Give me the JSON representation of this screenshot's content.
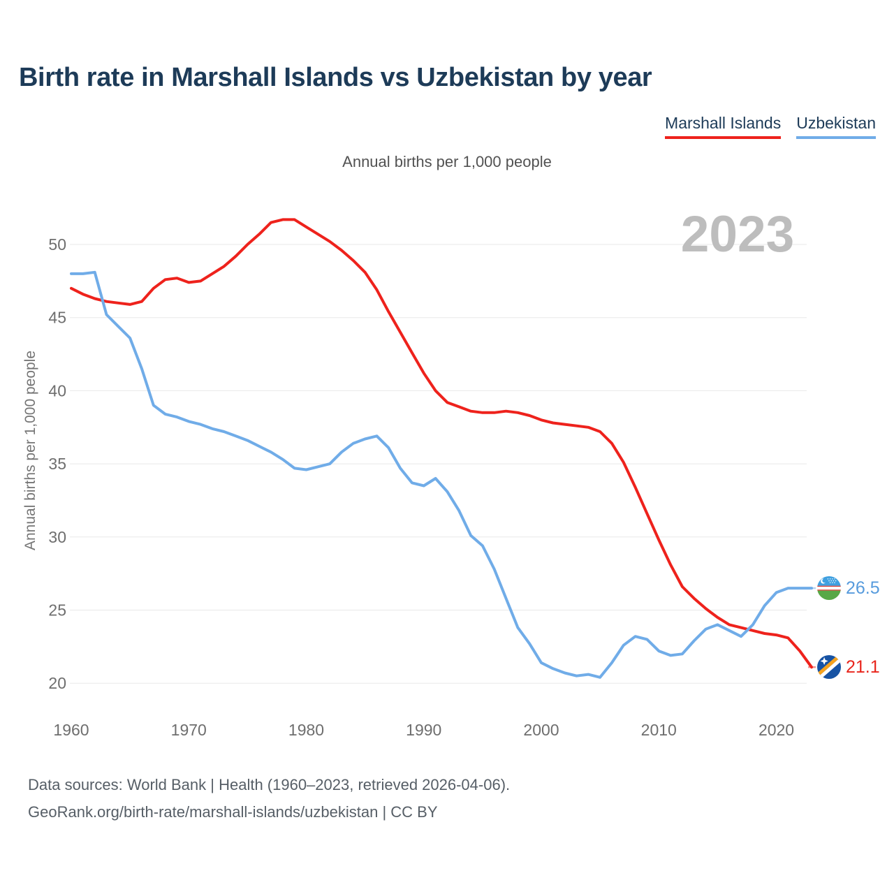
{
  "header": {
    "title": "Birth rate in Marshall Islands vs Uzbekistan by year"
  },
  "legend": {
    "items": [
      {
        "label": "Marshall Islands",
        "color": "#ee221c"
      },
      {
        "label": "Uzbekistan",
        "color": "#70ace8"
      }
    ]
  },
  "subtitle": "Annual births per 1,000 people",
  "watermark": "2023",
  "y_axis_title": "Annual births per 1,000 people",
  "end_labels": [
    {
      "series": "Uzbekistan",
      "value": "26.5",
      "y_value": 26.5,
      "color": "#579bdd",
      "flag": "uzbekistan-flag"
    },
    {
      "series": "Marshall Islands",
      "value": "21.1",
      "y_value": 21.1,
      "color": "#e8251c",
      "flag": "marshall-islands-flag"
    }
  ],
  "footer": {
    "line1": "Data sources: World Bank | Health (1960–2023, retrieved 2026-04-06).",
    "line2": "GeoRank.org/birth-rate/marshall-islands/uzbekistan | CC BY"
  },
  "style": {
    "grid_color": "#e8e8e8",
    "tick_color": "#6e6e6e",
    "watermark_color": "#bdbdbd",
    "line_width": 4
  },
  "chart_data": {
    "type": "line",
    "title": "Birth rate in Marshall Islands vs Uzbekistan by year",
    "subtitle": "Annual births per 1,000 people",
    "ylabel": "Annual births per 1,000 people",
    "x_start": 1960,
    "x_end": 2023,
    "x_ticks": [
      1960,
      1970,
      1980,
      1990,
      2000,
      2010,
      2020
    ],
    "y_ticks": [
      20,
      25,
      30,
      35,
      40,
      45,
      50
    ],
    "ylim": [
      18.3,
      53.2
    ],
    "grid": true,
    "legend_position": "top-right",
    "series": [
      {
        "name": "Marshall Islands",
        "color": "#ee221c",
        "values": [
          47.0,
          46.6,
          46.3,
          46.1,
          46.0,
          45.9,
          46.1,
          47.0,
          47.6,
          47.7,
          47.4,
          47.5,
          48.0,
          48.5,
          49.2,
          50.0,
          50.7,
          51.5,
          51.7,
          51.7,
          51.2,
          50.7,
          50.2,
          49.6,
          48.9,
          48.1,
          46.9,
          45.4,
          44.0,
          42.6,
          41.2,
          40.0,
          39.2,
          38.9,
          38.6,
          38.5,
          38.5,
          38.6,
          38.5,
          38.3,
          38.0,
          37.8,
          37.7,
          37.6,
          37.5,
          37.2,
          36.4,
          35.1,
          33.4,
          31.6,
          29.8,
          28.1,
          26.6,
          25.8,
          25.1,
          24.5,
          24.0,
          23.8,
          23.6,
          23.4,
          23.3,
          23.1,
          22.2,
          21.1
        ]
      },
      {
        "name": "Uzbekistan",
        "color": "#70ace8",
        "values": [
          48.0,
          48.0,
          48.1,
          45.2,
          44.4,
          43.6,
          41.5,
          39.0,
          38.4,
          38.2,
          37.9,
          37.7,
          37.4,
          37.2,
          36.9,
          36.6,
          36.2,
          35.8,
          35.3,
          34.7,
          34.6,
          34.8,
          35.0,
          35.8,
          36.4,
          36.7,
          36.9,
          36.1,
          34.7,
          33.7,
          33.5,
          34.0,
          33.1,
          31.8,
          30.1,
          29.4,
          27.8,
          25.8,
          23.8,
          22.7,
          21.4,
          21.0,
          20.7,
          20.5,
          20.6,
          20.4,
          21.4,
          22.6,
          23.2,
          23.0,
          22.2,
          21.9,
          22.0,
          22.9,
          23.7,
          24.0,
          23.6,
          23.2,
          24.0,
          25.3,
          26.2,
          26.5,
          26.5,
          26.5
        ]
      }
    ]
  }
}
